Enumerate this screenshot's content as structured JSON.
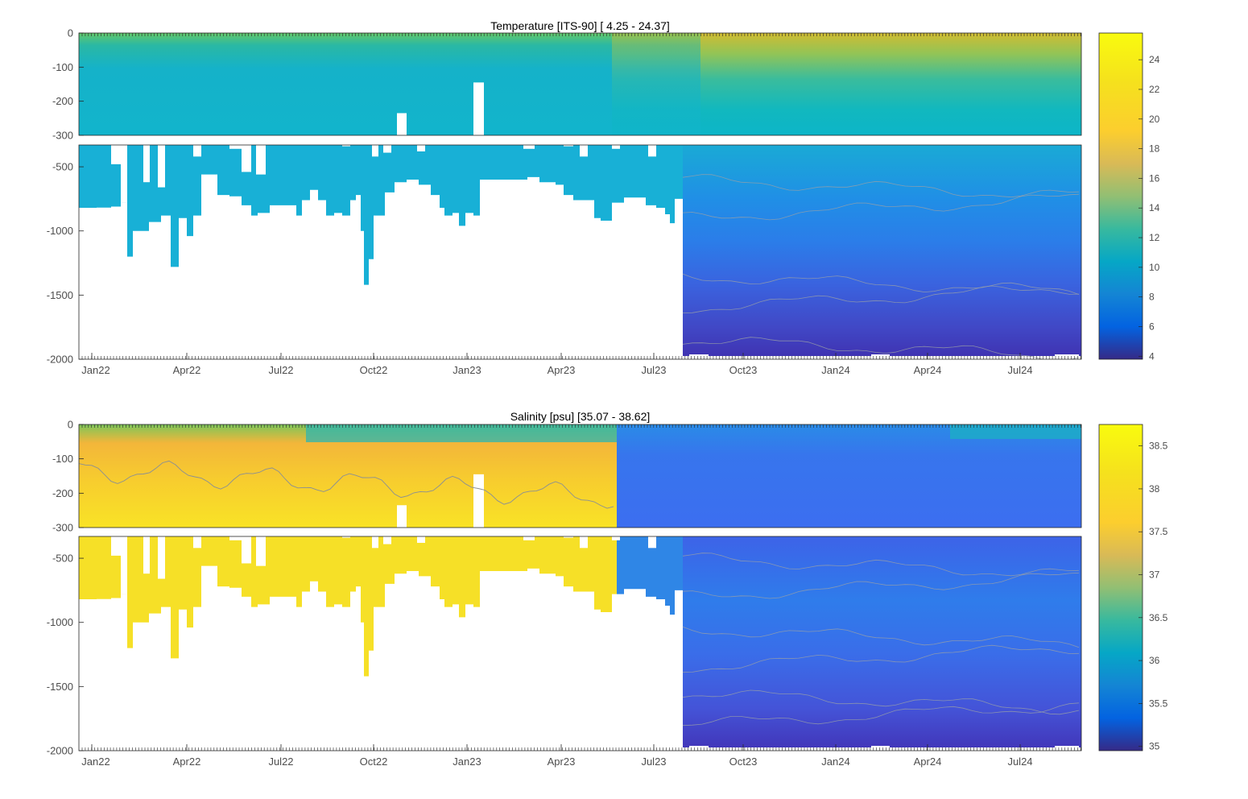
{
  "chart_data": [
    {
      "type": "heatmap",
      "title": "Temperature [ITS-90]   [ 4.25 - 24.37]",
      "xlabel": "",
      "ylabel": "",
      "x_ticks": [
        "Jan22",
        "Apr22",
        "Jul22",
        "Oct22",
        "Jan23",
        "Apr23",
        "Jul23",
        "Oct23",
        "Jan24",
        "Apr24",
        "Jul24"
      ],
      "y_ticks_upper": [
        "0",
        "-100",
        "-200",
        "-300"
      ],
      "y_ticks_lower": [
        "-500",
        "-1000",
        "-1500",
        "-2000"
      ],
      "ylim_upper": [
        -300,
        0
      ],
      "ylim_lower": [
        -2000,
        -330
      ],
      "colorbar": {
        "ticks": [
          "4",
          "6",
          "8",
          "10",
          "12",
          "14",
          "16",
          "18",
          "20",
          "22",
          "24"
        ],
        "range": [
          3.8,
          25.8
        ],
        "colormap": "parula"
      },
      "layers": [
        {
          "depth": 10,
          "value": 17
        },
        {
          "depth": 50,
          "value": 15
        },
        {
          "depth": 100,
          "value": 13.5
        },
        {
          "depth": 300,
          "value": 13.3
        },
        {
          "depth": 700,
          "value": 10.5
        },
        {
          "depth": 1000,
          "value": 9.5
        },
        {
          "depth": 1500,
          "value": 7
        },
        {
          "depth": 2000,
          "value": 5
        }
      ]
    },
    {
      "type": "heatmap",
      "title": "Salinity [psu]   [35.07 - 38.62]",
      "xlabel": "",
      "ylabel": "",
      "x_ticks": [
        "Jan22",
        "Apr22",
        "Jul22",
        "Oct22",
        "Jan23",
        "Apr23",
        "Jul23",
        "Oct23",
        "Jan24",
        "Apr24",
        "Jul24"
      ],
      "y_ticks_upper": [
        "0",
        "-100",
        "-200",
        "-300"
      ],
      "y_ticks_lower": [
        "-500",
        "-1000",
        "-1500",
        "-2000"
      ],
      "ylim_upper": [
        -300,
        0
      ],
      "ylim_lower": [
        -2000,
        -330
      ],
      "colorbar": {
        "ticks": [
          "35",
          "35.5",
          "36",
          "36.5",
          "37",
          "37.5",
          "38",
          "38.5"
        ],
        "range": [
          34.95,
          38.75
        ],
        "colormap": "parula"
      },
      "layers_early": [
        {
          "depth": 10,
          "value": 37.6
        },
        {
          "depth": 80,
          "value": 38.0
        },
        {
          "depth": 200,
          "value": 38.5
        },
        {
          "depth": 2000,
          "value": 38.6
        }
      ],
      "layers_late": [
        {
          "depth": 10,
          "value": 36.1
        },
        {
          "depth": 300,
          "value": 35.9
        },
        {
          "depth": 800,
          "value": 36.1
        },
        {
          "depth": 1500,
          "value": 35.5
        },
        {
          "depth": 2000,
          "value": 35.15
        }
      ]
    }
  ]
}
